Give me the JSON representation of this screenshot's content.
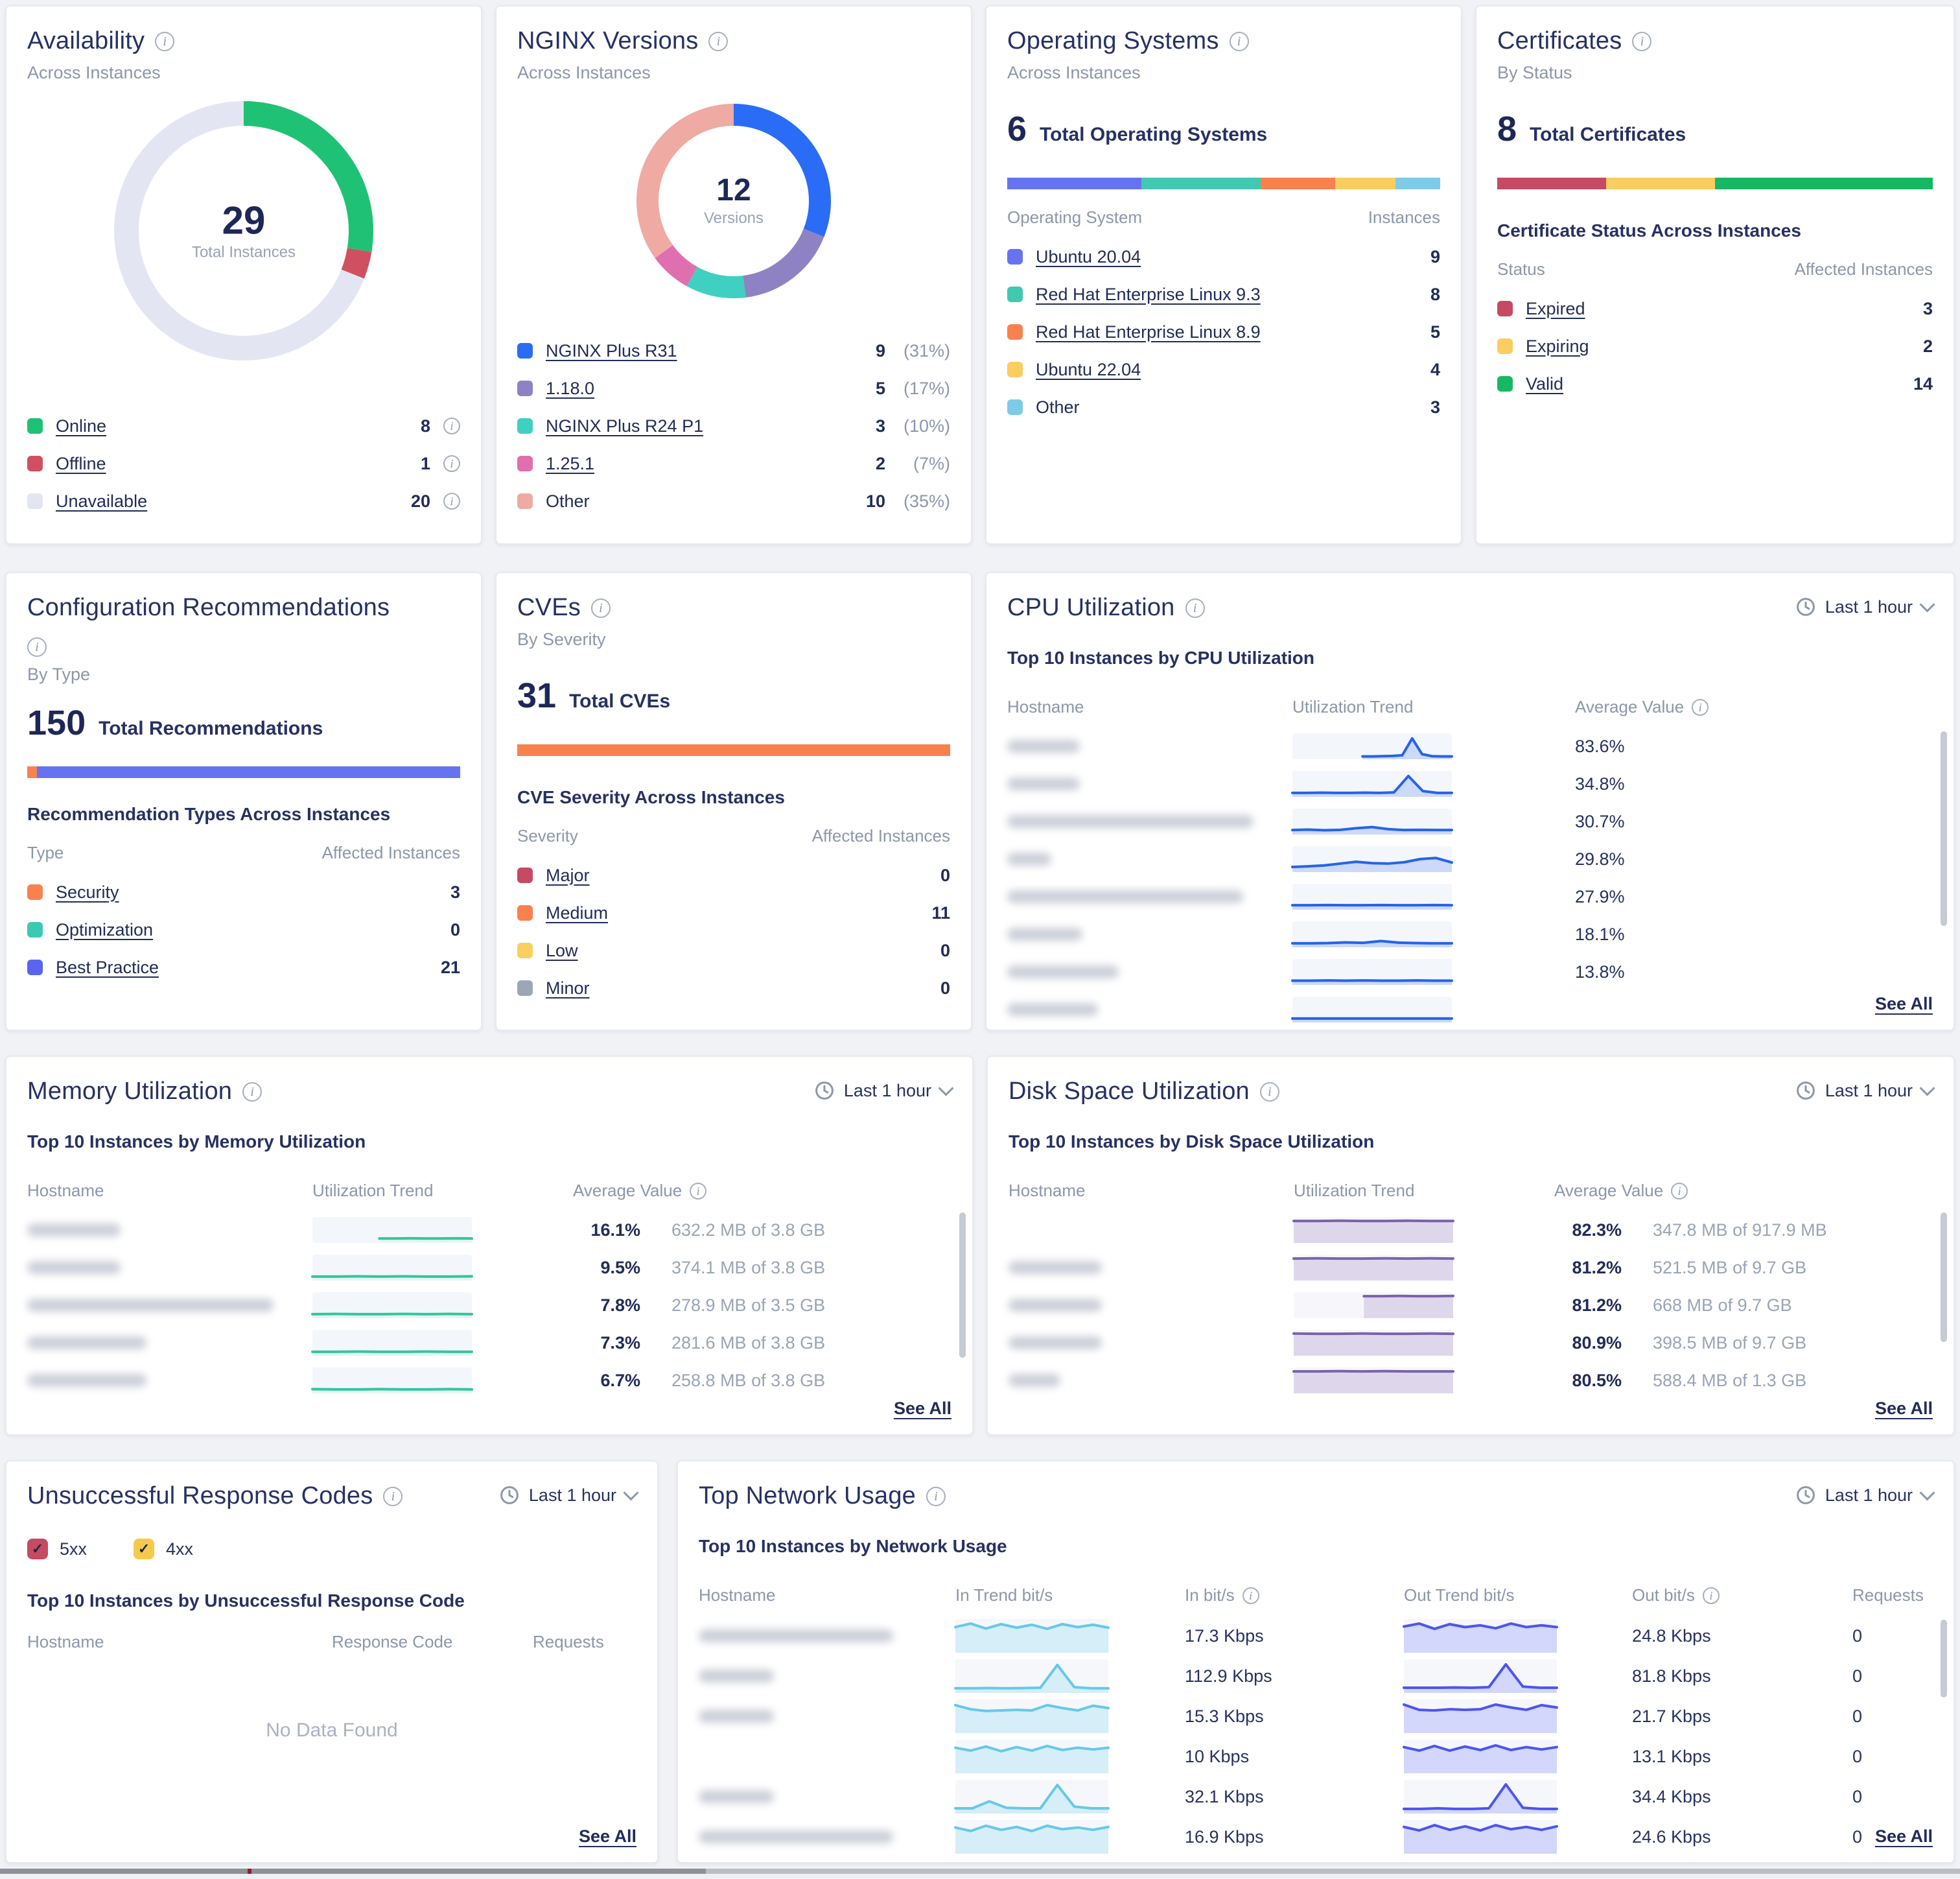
{
  "cards": {
    "availability": {
      "title": "Availability",
      "subtitle": "Across Instances",
      "center_value": "29",
      "center_label": "Total Instances",
      "donut": [
        {
          "label": "Online",
          "pct": 27.6,
          "color": "#1fc274"
        },
        {
          "label": "Offline",
          "pct": 3.4,
          "color": "#d05062"
        },
        {
          "label": "Unavailable",
          "pct": 69.0,
          "color": "#e3e6f2"
        }
      ],
      "legend": [
        {
          "label": "Online",
          "value": "8",
          "color": "#1fc274",
          "link": true,
          "info": true
        },
        {
          "label": "Offline",
          "value": "1",
          "color": "#d05062",
          "link": true,
          "info": true
        },
        {
          "label": "Unavailable",
          "value": "20",
          "color": "#e3e6f2",
          "link": true,
          "info": true
        }
      ]
    },
    "nginx_versions": {
      "title": "NGINX Versions",
      "subtitle": "Across Instances",
      "center_value": "12",
      "center_label": "Versions",
      "donut": [
        {
          "label": "NGINX Plus R31",
          "pct": 31,
          "color": "#2a6cf5"
        },
        {
          "label": "1.18.0",
          "pct": 17,
          "color": "#8f82c4"
        },
        {
          "label": "NGINX Plus R24 P1",
          "pct": 10,
          "color": "#3fd0c2"
        },
        {
          "label": "1.25.1",
          "pct": 7,
          "color": "#df6fae"
        },
        {
          "label": "Other",
          "pct": 35,
          "color": "#efaaa4"
        }
      ],
      "legend": [
        {
          "label": "NGINX Plus R31",
          "value": "9",
          "pct": "(31%)",
          "color": "#2a6cf5",
          "link": true
        },
        {
          "label": "1.18.0",
          "value": "5",
          "pct": "(17%)",
          "color": "#8f82c4",
          "link": true
        },
        {
          "label": "NGINX Plus R24 P1",
          "value": "3",
          "pct": "(10%)",
          "color": "#3fd0c2",
          "link": true
        },
        {
          "label": "1.25.1",
          "value": "2",
          "pct": "(7%)",
          "color": "#df6fae",
          "link": true
        },
        {
          "label": "Other",
          "value": "10",
          "pct": "(35%)",
          "color": "#efaaa4",
          "link": false
        }
      ]
    },
    "operating_systems": {
      "title": "Operating Systems",
      "subtitle": "Across Instances",
      "stat_value": "6",
      "stat_label": "Total Operating Systems",
      "bar": [
        {
          "pct": 31,
          "color": "#6673f1"
        },
        {
          "pct": 27.6,
          "color": "#40c8b1"
        },
        {
          "pct": 17.2,
          "color": "#f8814e"
        },
        {
          "pct": 13.8,
          "color": "#f9cd60"
        },
        {
          "pct": 10.4,
          "color": "#7ecbe8"
        }
      ],
      "col_headers": [
        "Operating System",
        "Instances"
      ],
      "rows": [
        {
          "label": "Ubuntu 20.04",
          "value": "9",
          "color": "#6673f1",
          "link": true
        },
        {
          "label": "Red Hat Enterprise Linux 9.3",
          "value": "8",
          "color": "#40c8b1",
          "link": true
        },
        {
          "label": "Red Hat Enterprise Linux 8.9",
          "value": "5",
          "color": "#f8814e",
          "link": true
        },
        {
          "label": "Ubuntu 22.04",
          "value": "4",
          "color": "#f9cd60",
          "link": true
        },
        {
          "label": "Other",
          "value": "3",
          "color": "#7ecbe8",
          "link": false
        }
      ]
    },
    "certificates": {
      "title": "Certificates",
      "subtitle": "By Status",
      "stat_value": "8",
      "stat_label": "Total Certificates",
      "bar": [
        {
          "pct": 25,
          "color": "#c64a63"
        },
        {
          "pct": 25,
          "color": "#f9cd60"
        },
        {
          "pct": 50,
          "color": "#17b864"
        }
      ],
      "section": "Certificate Status Across Instances",
      "col_headers": [
        "Status",
        "Affected Instances"
      ],
      "rows": [
        {
          "label": "Expired",
          "value": "3",
          "color": "#c64a63",
          "link": true
        },
        {
          "label": "Expiring",
          "value": "2",
          "color": "#f9cd60",
          "link": true
        },
        {
          "label": "Valid",
          "value": "14",
          "color": "#17b864",
          "link": true
        }
      ]
    },
    "config_recommendations": {
      "title": "Configuration Recommendations",
      "subtitle": "By Type",
      "stat_value": "150",
      "stat_label": "Total Recommendations",
      "bar": [
        {
          "pct": 2.3,
          "color": "#f8814e"
        },
        {
          "pct": 97.7,
          "color": "#6673f1"
        }
      ],
      "section": "Recommendation Types Across Instances",
      "col_headers": [
        "Type",
        "Affected Instances"
      ],
      "rows": [
        {
          "label": "Security",
          "value": "3",
          "color": "#f8814e",
          "link": true
        },
        {
          "label": "Optimization",
          "value": "0",
          "color": "#3cc9b4",
          "link": true
        },
        {
          "label": "Best Practice",
          "value": "21",
          "color": "#5a64f0",
          "link": true
        }
      ]
    },
    "cves": {
      "title": "CVEs",
      "subtitle": "By Severity",
      "stat_value": "31",
      "stat_label": "Total CVEs",
      "bar": [
        {
          "pct": 100,
          "color": "#f8814e"
        }
      ],
      "section": "CVE Severity Across Instances",
      "col_headers": [
        "Severity",
        "Affected Instances"
      ],
      "rows": [
        {
          "label": "Major",
          "value": "0",
          "color": "#c64a63",
          "link": true
        },
        {
          "label": "Medium",
          "value": "11",
          "color": "#f8814e",
          "link": true
        },
        {
          "label": "Low",
          "value": "0",
          "color": "#f9d05f",
          "link": true
        },
        {
          "label": "Minor",
          "value": "0",
          "color": "#9da6b7",
          "link": true
        }
      ]
    },
    "cpu": {
      "title": "CPU Utilization",
      "time_range": "Last 1 hour",
      "section": "Top 10 Instances by CPU Utilization",
      "col_headers": [
        "Hostname",
        "Utilization Trend",
        "Average Value"
      ],
      "see_all": "See All",
      "trend_style": {
        "line": "#2563ec",
        "fill": "#ccd9f8",
        "bg": "#f3f6fb"
      },
      "rows": [
        {
          "host_w": 56,
          "value": "83.6%",
          "x0": 0.44,
          "trend": [
            0.05,
            0.05,
            0.06,
            0.07,
            0.1,
            0.85,
            0.15,
            0.06,
            0.05,
            0.05
          ]
        },
        {
          "host_w": 56,
          "value": "34.8%",
          "x0": 0,
          "trend": [
            0.1,
            0.1,
            0.11,
            0.1,
            0.1,
            0.11,
            0.1,
            0.12,
            0.85,
            0.18,
            0.1,
            0.1
          ]
        },
        {
          "host_w": 190,
          "value": "30.7%",
          "x0": 0,
          "trend": [
            0.12,
            0.14,
            0.11,
            0.13,
            0.2,
            0.25,
            0.16,
            0.12,
            0.13,
            0.12,
            0.12
          ]
        },
        {
          "host_w": 34,
          "value": "29.8%",
          "x0": 0,
          "trend": [
            0.15,
            0.18,
            0.22,
            0.3,
            0.38,
            0.32,
            0.3,
            0.36,
            0.5,
            0.55,
            0.35
          ]
        },
        {
          "host_w": 182,
          "value": "27.9%",
          "x0": 0,
          "trend": [
            0.12,
            0.12,
            0.13,
            0.12,
            0.12,
            0.13,
            0.12,
            0.12,
            0.13,
            0.12
          ]
        },
        {
          "host_w": 58,
          "value": "18.1%",
          "x0": 0,
          "trend": [
            0.1,
            0.1,
            0.11,
            0.14,
            0.12,
            0.2,
            0.13,
            0.11,
            0.1,
            0.1
          ]
        },
        {
          "host_w": 86,
          "value": "13.8%",
          "x0": 0,
          "trend": [
            0.11,
            0.11,
            0.12,
            0.11,
            0.12,
            0.11,
            0.11,
            0.12,
            0.11,
            0.11
          ]
        },
        {
          "host_w": 70,
          "value": "",
          "x0": 0,
          "trend": [
            0.1,
            0.1,
            0.1,
            0.1,
            0.1,
            0.1
          ]
        }
      ]
    },
    "memory": {
      "title": "Memory Utilization",
      "time_range": "Last 1 hour",
      "section": "Top 10 Instances by Memory Utilization",
      "col_headers": [
        "Hostname",
        "Utilization Trend",
        "Average Value"
      ],
      "see_all": "See All",
      "trend_style": {
        "line": "#2fc79e",
        "fill": "#e6f6f1",
        "bg": "#f3f6fb"
      },
      "rows": [
        {
          "host_w": 72,
          "value": "16.1%",
          "detail": "632.2 MB of 3.8 GB",
          "x0": 0.42,
          "trend": [
            0.12,
            0.12,
            0.13,
            0.12,
            0.12,
            0.13,
            0.12
          ]
        },
        {
          "host_w": 72,
          "value": "9.5%",
          "detail": "374.1 MB of 3.8 GB",
          "x0": 0,
          "trend": [
            0.1,
            0.1,
            0.11,
            0.1,
            0.11,
            0.1,
            0.1,
            0.11
          ]
        },
        {
          "host_w": 190,
          "value": "7.8%",
          "detail": "278.9 MB of 3.5 GB",
          "x0": 0,
          "trend": [
            0.1,
            0.11,
            0.1,
            0.1,
            0.11,
            0.1,
            0.11,
            0.1
          ]
        },
        {
          "host_w": 92,
          "value": "7.3%",
          "detail": "281.6 MB of 3.8 GB",
          "x0": 0,
          "trend": [
            0.1,
            0.1,
            0.11,
            0.1,
            0.1,
            0.11,
            0.1,
            0.1
          ]
        },
        {
          "host_w": 92,
          "value": "6.7%",
          "detail": "258.8 MB of 3.8 GB",
          "x0": 0,
          "trend": [
            0.11,
            0.1,
            0.1,
            0.11,
            0.1,
            0.1,
            0.11,
            0.1
          ]
        }
      ]
    },
    "disk": {
      "title": "Disk Space Utilization",
      "time_range": "Last 1 hour",
      "section": "Top 10 Instances by Disk Space Utilization",
      "col_headers": [
        "Hostname",
        "Utilization Trend",
        "Average Value"
      ],
      "see_all": "See All",
      "trend_style": {
        "line": "#7b63ad",
        "fill": "#ded7ec",
        "bg": "#f7f7fb"
      },
      "rows": [
        {
          "host_w": 0,
          "value": "82.3%",
          "detail": "347.8 MB of 917.9 MB",
          "x0": 0,
          "trend": [
            0.9,
            0.9,
            0.91,
            0.9,
            0.9,
            0.91,
            0.9,
            0.9
          ]
        },
        {
          "host_w": 72,
          "value": "81.2%",
          "detail": "521.5 MB of 9.7 GB",
          "x0": 0,
          "trend": [
            0.9,
            0.91,
            0.9,
            0.9,
            0.91,
            0.9,
            0.91,
            0.9
          ]
        },
        {
          "host_w": 72,
          "value": "81.2%",
          "detail": "668 MB of 9.7 GB",
          "x0": 0.44,
          "trend": [
            0.9,
            0.9,
            0.91,
            0.9,
            0.9,
            0.91
          ]
        },
        {
          "host_w": 72,
          "value": "80.9%",
          "detail": "398.5 MB of 9.7 GB",
          "x0": 0,
          "trend": [
            0.91,
            0.9,
            0.9,
            0.91,
            0.9,
            0.9,
            0.91,
            0.9
          ]
        },
        {
          "host_w": 40,
          "value": "80.5%",
          "detail": "588.4 MB of 1.3 GB",
          "x0": 0,
          "trend": [
            0.9,
            0.9,
            0.91,
            0.9,
            0.91,
            0.9,
            0.9,
            0.9
          ]
        }
      ]
    },
    "response_codes": {
      "title": "Unsuccessful Response Codes",
      "time_range": "Last 1 hour",
      "filters": [
        {
          "label": "5xx",
          "color": "#c64a61",
          "checked": true
        },
        {
          "label": "4xx",
          "color": "#f6c94d",
          "checked": true
        }
      ],
      "section": "Top 10 Instances by Unsuccessful Response Code",
      "col_headers": [
        "Hostname",
        "Response Code",
        "Requests"
      ],
      "empty_text": "No Data Found",
      "see_all": "See All"
    },
    "network": {
      "title": "Top Network Usage",
      "time_range": "Last 1 hour",
      "section": "Top 10 Instances by Network Usage",
      "col_headers": [
        "Hostname",
        "In Trend bit/s",
        "In bit/s",
        "Out Trend bit/s",
        "Out bit/s",
        "Requests"
      ],
      "see_all": "See All",
      "in_style": {
        "line": "#66c9e9",
        "fill": "#d5eef8",
        "bg": "#f5f7fb"
      },
      "out_style": {
        "line": "#4d55ee",
        "fill": "#d2d7fb",
        "bg": "#f5f7fb"
      },
      "rows": [
        {
          "host_w": 150,
          "in_value": "17.3 Kbps",
          "out_value": "24.8 Kbps",
          "requests": "0",
          "in_trend": [
            0.8,
            0.92,
            0.75,
            0.9,
            0.78,
            0.88,
            0.74,
            0.9,
            0.8,
            0.88,
            0.78
          ],
          "out_trend": [
            0.82,
            0.92,
            0.74,
            0.9,
            0.8,
            0.86,
            0.76,
            0.92,
            0.8,
            0.86,
            0.8
          ]
        },
        {
          "host_w": 58,
          "in_value": "112.9 Kbps",
          "out_value": "81.8 Kbps",
          "requests": "0",
          "in_trend": [
            0.08,
            0.08,
            0.09,
            0.08,
            0.09,
            0.1,
            0.88,
            0.12,
            0.08,
            0.08
          ],
          "out_trend": [
            0.1,
            0.1,
            0.1,
            0.11,
            0.1,
            0.12,
            0.9,
            0.14,
            0.1,
            0.1
          ]
        },
        {
          "host_w": 58,
          "in_value": "15.3 Kbps",
          "out_value": "21.7 Kbps",
          "requests": "0",
          "in_trend": [
            0.88,
            0.74,
            0.68,
            0.7,
            0.72,
            0.7,
            0.88,
            0.78,
            0.7,
            0.86,
            0.78
          ],
          "out_trend": [
            0.9,
            0.72,
            0.7,
            0.74,
            0.72,
            0.74,
            0.9,
            0.8,
            0.72,
            0.88,
            0.8
          ]
        },
        {
          "host_w": 0,
          "in_value": "10 Kbps",
          "out_value": "13.1 Kbps",
          "requests": "0",
          "in_trend": [
            0.8,
            0.7,
            0.84,
            0.68,
            0.82,
            0.7,
            0.86,
            0.72,
            0.8,
            0.74,
            0.8
          ],
          "out_trend": [
            0.82,
            0.7,
            0.86,
            0.7,
            0.84,
            0.72,
            0.88,
            0.72,
            0.82,
            0.74,
            0.82
          ]
        },
        {
          "host_w": 58,
          "in_value": "32.1 Kbps",
          "out_value": "34.4 Kbps",
          "requests": "0",
          "in_trend": [
            0.1,
            0.1,
            0.34,
            0.12,
            0.1,
            0.1,
            0.9,
            0.16,
            0.1,
            0.1
          ],
          "out_trend": [
            0.08,
            0.08,
            0.1,
            0.08,
            0.08,
            0.1,
            0.92,
            0.12,
            0.08,
            0.08
          ]
        },
        {
          "host_w": 150,
          "in_value": "16.9 Kbps",
          "out_value": "24.6 Kbps",
          "requests": "0",
          "in_trend": [
            0.82,
            0.7,
            0.88,
            0.74,
            0.84,
            0.7,
            0.88,
            0.76,
            0.82,
            0.74,
            0.84
          ],
          "out_trend": [
            0.84,
            0.72,
            0.9,
            0.74,
            0.86,
            0.72,
            0.9,
            0.76,
            0.84,
            0.74,
            0.86
          ]
        }
      ]
    }
  }
}
